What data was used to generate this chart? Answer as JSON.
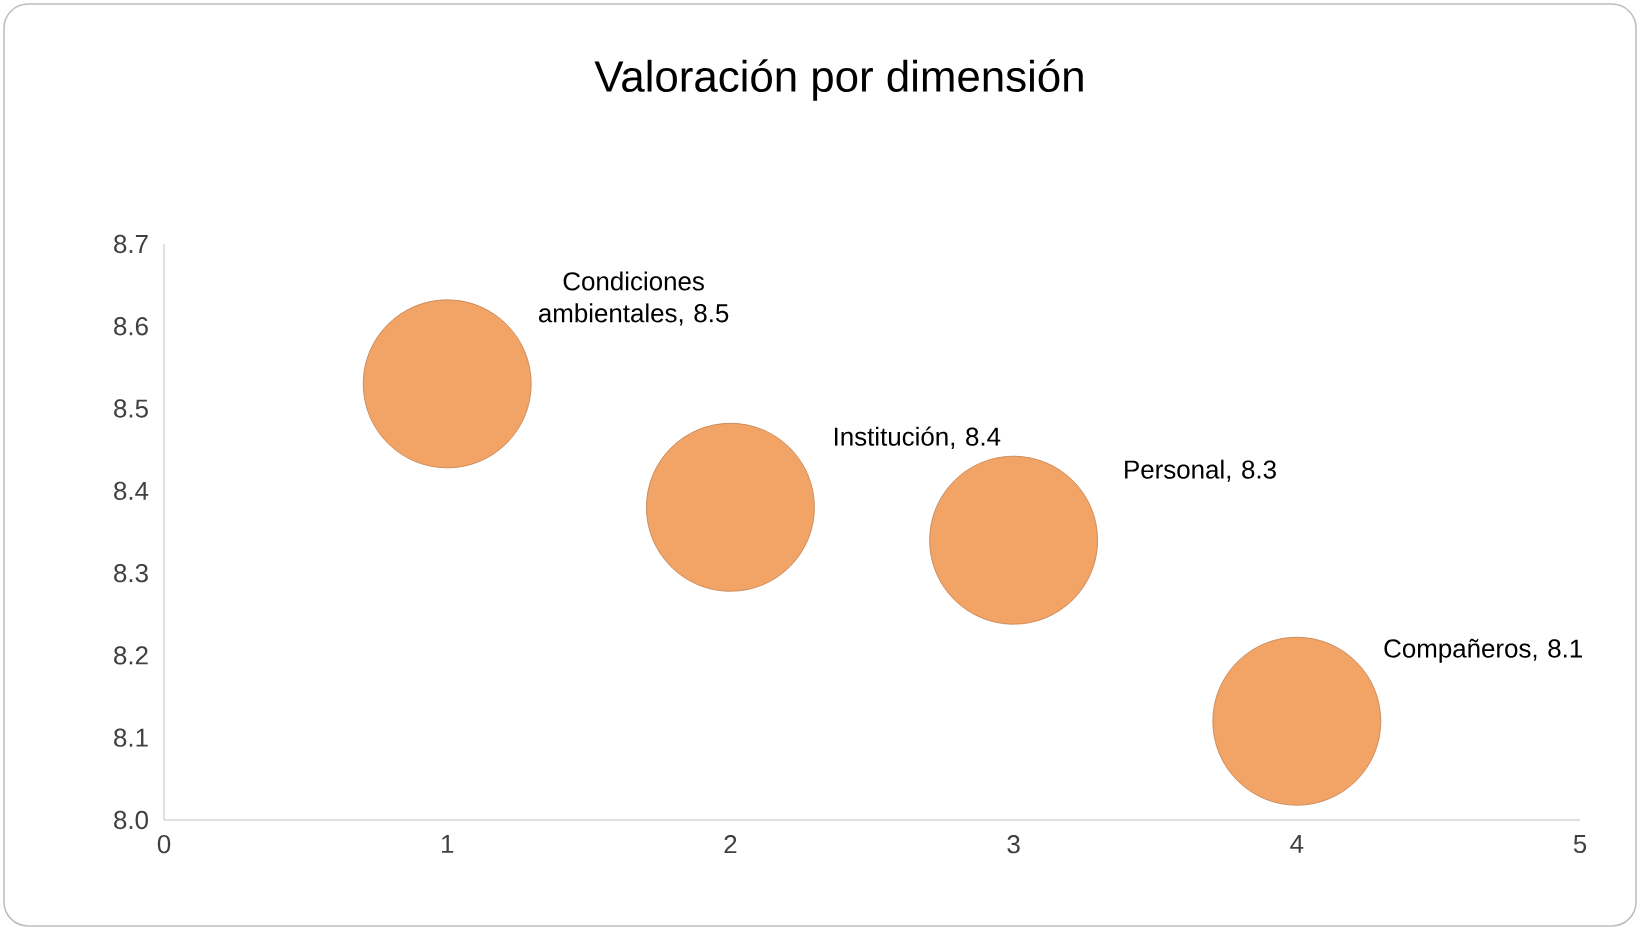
{
  "chart_data": {
    "type": "bubble",
    "title": "Valoración por dimensión",
    "x": [
      1,
      2,
      3,
      4
    ],
    "values": [
      8.53,
      8.38,
      8.34,
      8.12
    ],
    "sizes": [
      1,
      1,
      1,
      1
    ],
    "value_labels": [
      "Condiciones ambientales, 8.5",
      "Institución, 8.4",
      "Personal, 8.3",
      "Compañeros, 8.1"
    ],
    "color": "#f2a366",
    "xlim": [
      0,
      5
    ],
    "xticks": [
      0,
      1,
      2,
      3,
      4,
      5
    ],
    "ylim": [
      8.0,
      8.7
    ],
    "yticks": [
      {
        "value": 8.0,
        "label": "8.0"
      },
      8.1,
      8.2,
      8.3,
      8.4,
      8.5,
      8.6,
      8.7
    ],
    "grid": false
  }
}
